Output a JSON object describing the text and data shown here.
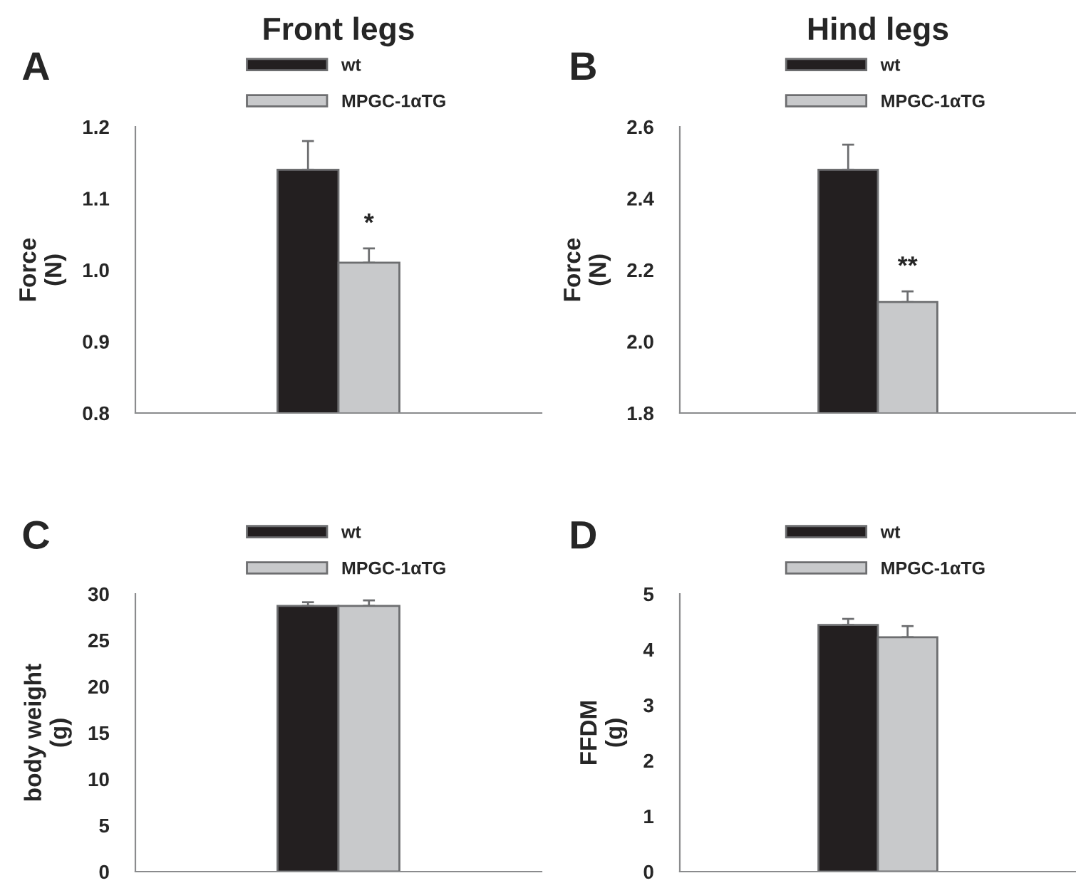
{
  "chart_data": [
    {
      "type": "bar",
      "title": "Front legs",
      "ylabel": "Force\n(N)",
      "categories": [
        null
      ],
      "ylim": [
        0.8,
        1.2
      ],
      "yticks": [
        0.8,
        0.9,
        "1.0",
        1.1,
        1.2
      ],
      "legend": "top",
      "annotations": [
        "A",
        "*"
      ],
      "series": [
        {
          "name": "wt",
          "color": "#231f20",
          "values": [
            1.14
          ],
          "errors": [
            [
              1.14,
              1.18
            ]
          ]
        },
        {
          "name": "MPGC-1αTG",
          "color": "#c8c9cb",
          "values": [
            1.01
          ],
          "errors": [
            [
              1.01,
              1.03
            ]
          ]
        }
      ]
    },
    {
      "type": "bar",
      "title": "Hind legs",
      "ylabel": "Force\n(N)",
      "categories": [
        null
      ],
      "ylim": [
        1.8,
        2.6
      ],
      "yticks": [
        1.8,
        "2.0",
        2.2,
        2.4,
        2.6
      ],
      "legend": "top",
      "annotations": [
        "B",
        "**"
      ],
      "series": [
        {
          "name": "wt",
          "color": "#231f20",
          "values": [
            2.48
          ],
          "errors": [
            [
              2.48,
              2.55
            ]
          ]
        },
        {
          "name": "MPGC-1αTG",
          "color": "#c8c9cb",
          "values": [
            2.11
          ],
          "errors": [
            [
              2.11,
              2.14
            ]
          ]
        }
      ]
    },
    {
      "type": "bar",
      "ylabel": "body weight\n(g)",
      "categories": [
        null
      ],
      "ylim": [
        0,
        30
      ],
      "yticks": [
        0,
        5,
        10,
        15,
        20,
        25,
        30
      ],
      "legend": "top",
      "annotations": [
        "C"
      ],
      "series": [
        {
          "name": "wt",
          "color": "#231f20",
          "values": [
            28.7
          ],
          "errors": [
            [
              28.7,
              29.1
            ]
          ]
        },
        {
          "name": "MPGC-1αTG",
          "color": "#c8c9cb",
          "values": [
            28.7
          ],
          "errors": [
            [
              28.7,
              29.3
            ]
          ]
        }
      ]
    },
    {
      "type": "bar",
      "ylabel": "FFDM\n(g)",
      "categories": [
        null
      ],
      "ylim": [
        0,
        5
      ],
      "yticks": [
        0,
        1,
        2,
        3,
        4,
        5
      ],
      "legend": "top",
      "annotations": [
        "D"
      ],
      "series": [
        {
          "name": "wt",
          "color": "#231f20",
          "values": [
            4.44
          ],
          "errors": [
            [
              4.44,
              4.55
            ]
          ]
        },
        {
          "name": "MPGC-1αTG",
          "color": "#c8c9cb",
          "values": [
            4.22
          ],
          "errors": [
            [
              4.22,
              4.42
            ]
          ]
        }
      ]
    }
  ]
}
